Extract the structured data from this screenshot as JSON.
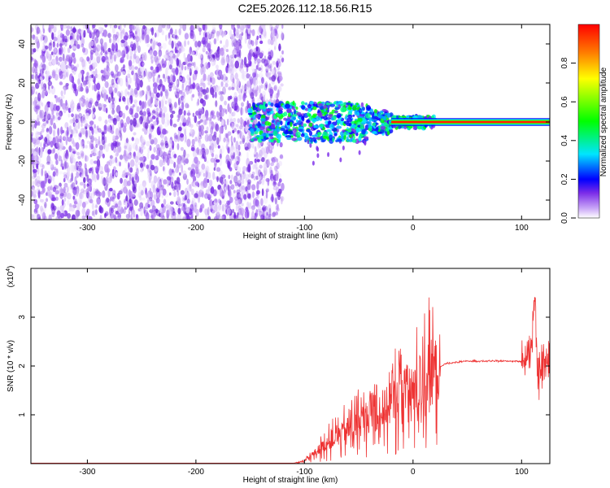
{
  "title": "C2E5.2026.112.18.56.R15",
  "chart_data": [
    {
      "type": "heatmap",
      "xlabel": "Height of straight line (km)",
      "ylabel": "Frequency (Hz)",
      "xlim": [
        -352,
        126
      ],
      "ylim": [
        -50,
        50
      ],
      "xticks": [
        -300,
        -200,
        -100,
        0,
        100
      ],
      "yticks": [
        -40,
        -20,
        0,
        20,
        40
      ],
      "colorbar": {
        "label": "Normalized spectral amplitude",
        "range": [
          0.0,
          1.0
        ],
        "ticks": [
          "0.0",
          "0.2",
          "0.4",
          "0.6",
          "0.8"
        ],
        "colors": [
          "#ffffff",
          "#c9a6f7",
          "#7a2be8",
          "#0000ff",
          "#00e5ff",
          "#00ff00",
          "#ffff00",
          "#ff8000",
          "#ff0000"
        ]
      },
      "regions": [
        {
          "description": "noise",
          "x": [
            -352,
            -130
          ],
          "amplitude": 0.15
        },
        {
          "description": "signal",
          "x": [
            -150,
            126
          ],
          "center_hz": 0
        }
      ]
    },
    {
      "type": "line",
      "xlabel": "Height of straight line (km)",
      "ylabel": "SNR (10 * v/v)",
      "multiplier": "(x10",
      "multiplier_exp": "4",
      "xlim": [
        -352,
        126
      ],
      "ylim": [
        0,
        4
      ],
      "xticks": [
        -300,
        -200,
        -100,
        0,
        100
      ],
      "yticks": [
        1,
        2,
        3
      ],
      "color": "#ee3333",
      "series": [
        {
          "x": [
            -352,
            -110,
            -100,
            -80,
            -60,
            -40,
            -20,
            -10,
            0,
            10,
            20,
            30,
            50,
            80,
            100,
            108,
            112,
            115,
            120,
            126
          ],
          "y": [
            0.01,
            0.01,
            0.05,
            0.4,
            0.7,
            1.0,
            1.2,
            1.6,
            1.4,
            1.8,
            1.9,
            2.05,
            2.1,
            2.1,
            2.1,
            2.2,
            3.3,
            1.7,
            2.1,
            2.05
          ]
        }
      ]
    }
  ]
}
